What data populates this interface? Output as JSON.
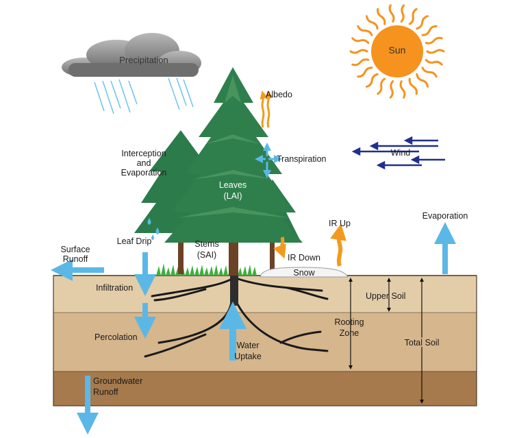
{
  "labels": {
    "precipitation": "Precipitation",
    "sun": "Sun",
    "albedo": "Albedo",
    "interception_l1": "Interception",
    "interception_l2": "and",
    "interception_l3": "Evaporation",
    "transpiration": "Transpiration",
    "wind": "Wind",
    "leaves_l1": "Leaves",
    "leaves_l2": "(LAI)",
    "ir_up": "IR Up",
    "evaporation": "Evaporation",
    "surface_runoff_l1": "Surface",
    "surface_runoff_l2": "Runoff",
    "leaf_drip": "Leaf Drip",
    "stems_l1": "Stems",
    "stems_l2": "(SAI)",
    "ir_down": "IR Down",
    "snow": "Snow",
    "infiltration": "Infiltration",
    "upper_soil": "Upper Soil",
    "rooting_zone_l1": "Rooting",
    "rooting_zone_l2": "Zone",
    "total_soil": "Total Soil",
    "percolation": "Percolation",
    "water_uptake_l1": "Water",
    "water_uptake_l2": "Uptake",
    "groundwater_runoff_l1": "Groundwater",
    "groundwater_runoff_l2": "Runoff"
  },
  "colors": {
    "soil_upper": "#e0c9a6",
    "soil_middle": "#d4b58d",
    "soil_bottom": "#a77a4e",
    "water_arrow": "#5bb8e6",
    "energy_arrow": "#f39a1e",
    "wind_arrow": "#1f2f8f",
    "tree_green": "#2a7d4a",
    "cloud_gray": "#8a8a8a",
    "sun_orange": "#f6921e"
  }
}
